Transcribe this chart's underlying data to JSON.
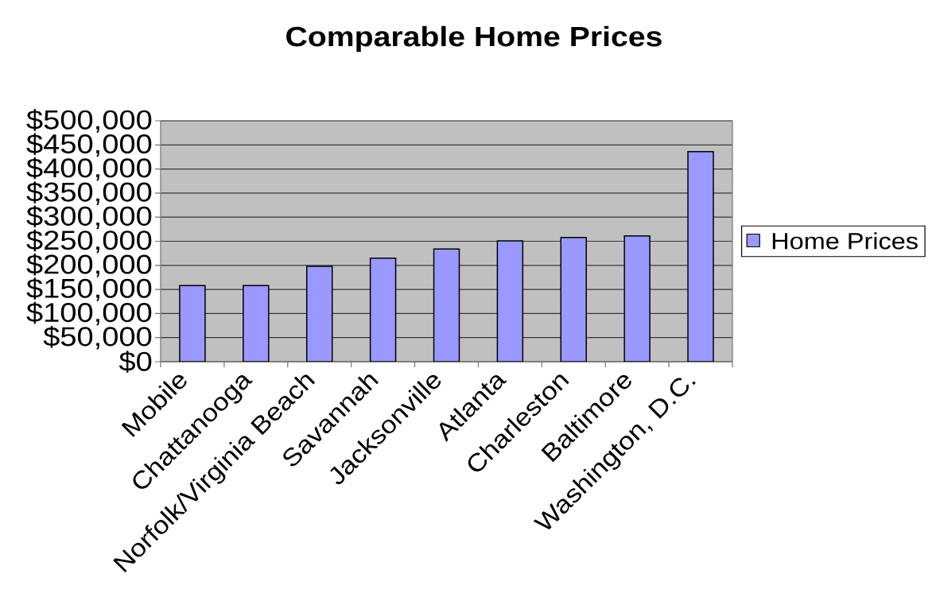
{
  "chart_data": {
    "type": "bar",
    "title": "Comparable Home Prices",
    "categories": [
      "Mobile",
      "Chattanooga",
      "Norfolk/Virginia Beach",
      "Savannah",
      "Jacksonville",
      "Atlanta",
      "Charleston",
      "Baltimore",
      "Washington, D.C."
    ],
    "series": [
      {
        "name": "Home Prices",
        "color": "#9999ff",
        "values": [
          158000,
          158000,
          198000,
          215000,
          234000,
          251000,
          258000,
          261000,
          436000
        ]
      }
    ],
    "ylim": [
      0,
      500000
    ],
    "yticks": [
      {
        "value": 0,
        "label": "$0"
      },
      {
        "value": 50000,
        "label": "$50,000"
      },
      {
        "value": 100000,
        "label": "$100,000"
      },
      {
        "value": 150000,
        "label": "$150,000"
      },
      {
        "value": 200000,
        "label": "$200,000"
      },
      {
        "value": 250000,
        "label": "$250,000"
      },
      {
        "value": 300000,
        "label": "$300,000"
      },
      {
        "value": 350000,
        "label": "$350,000"
      },
      {
        "value": 400000,
        "label": "$400,000"
      },
      {
        "value": 450000,
        "label": "$450,000"
      },
      {
        "value": 500000,
        "label": "$500,000"
      }
    ],
    "grid": "y",
    "legend": "right"
  }
}
